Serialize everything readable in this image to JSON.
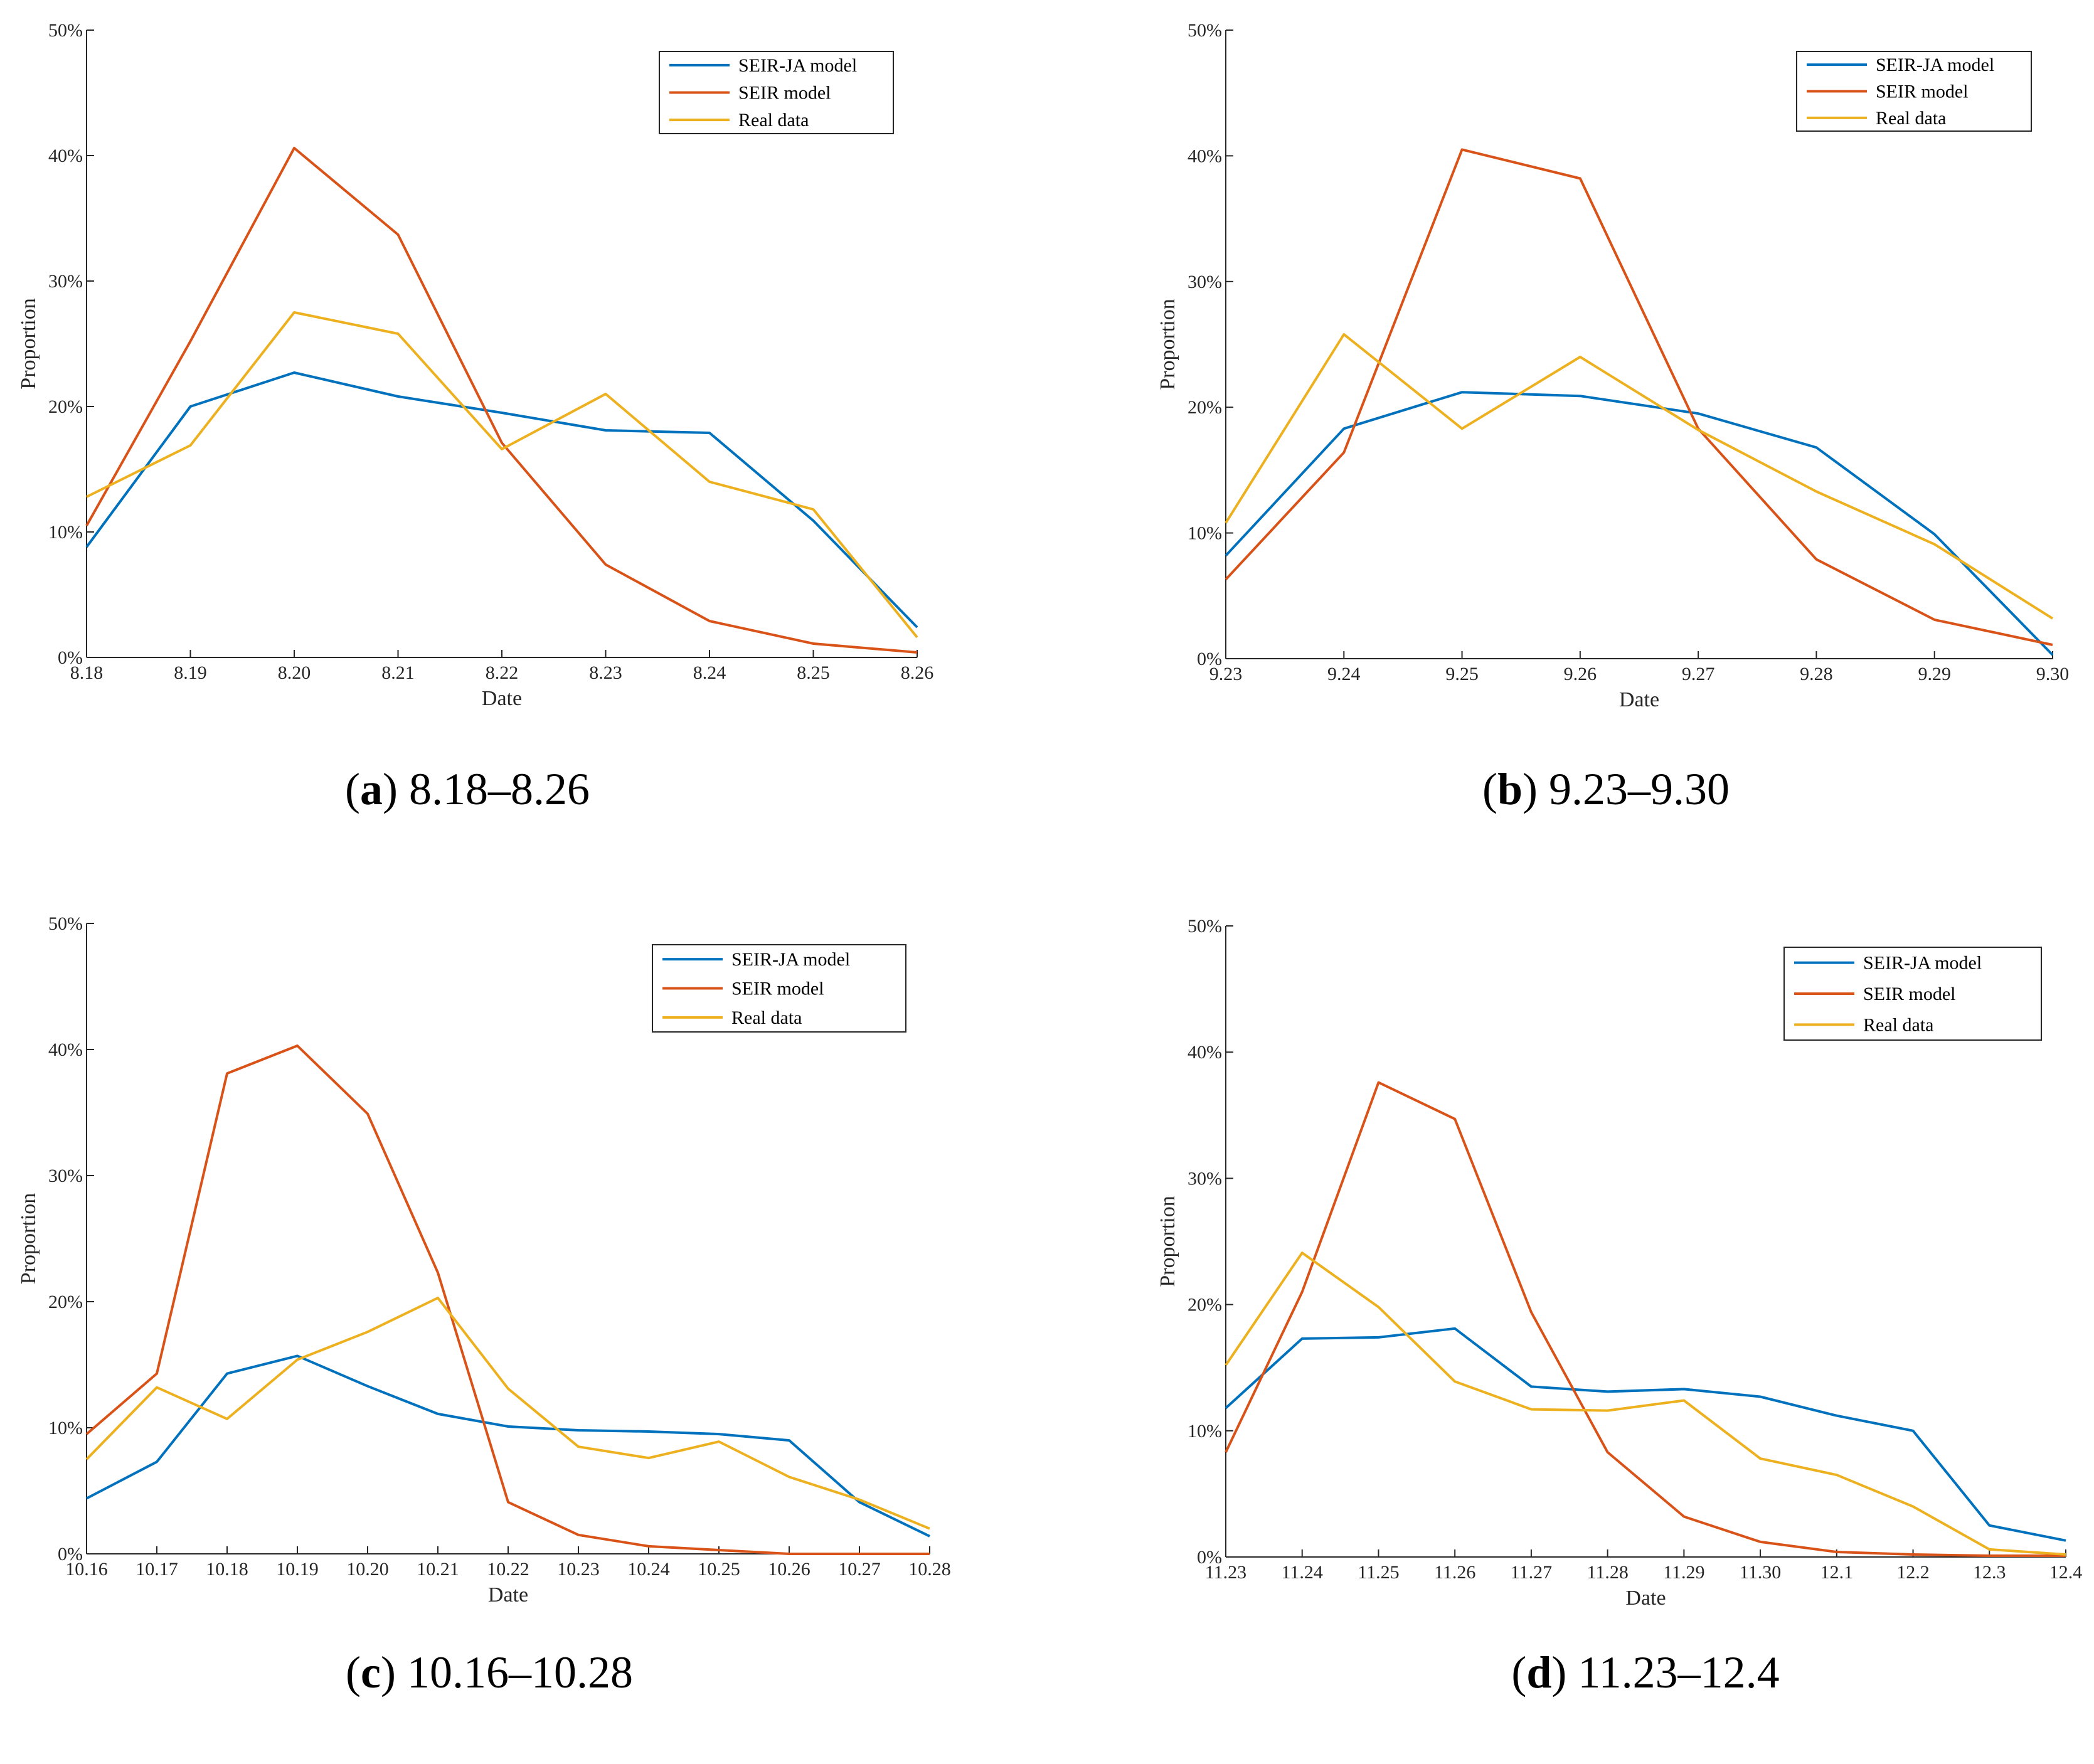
{
  "colors": {
    "SEIR-JA model": "#0072BD",
    "SEIR model": "#D95319",
    "Real data": "#EDB120"
  },
  "chart_data": [
    {
      "type": "line",
      "caption_letter": "a",
      "caption_open": "(",
      "caption_close": ")",
      "caption_text": " 8.18–8.26",
      "xlabel": "Date",
      "ylabel": "Proportion",
      "categories": [
        "8.18",
        "8.19",
        "8.20",
        "8.21",
        "8.22",
        "8.23",
        "8.24",
        "8.25",
        "8.26"
      ],
      "ylim": [
        0,
        50
      ],
      "yticks": [
        "0%",
        "10%",
        "20%",
        "30%",
        "40%",
        "50%"
      ],
      "legend_position": "top-right",
      "series": [
        {
          "name": "SEIR-JA model",
          "values": [
            8.8,
            20.0,
            22.7,
            20.8,
            19.5,
            18.1,
            17.9,
            10.9,
            2.4
          ]
        },
        {
          "name": "SEIR model",
          "values": [
            10.5,
            25.2,
            40.6,
            33.7,
            17.1,
            7.4,
            2.9,
            1.1,
            0.4
          ]
        },
        {
          "name": "Real data",
          "values": [
            12.8,
            16.9,
            27.5,
            25.8,
            16.6,
            21.0,
            14.0,
            11.8,
            1.6
          ]
        }
      ]
    },
    {
      "type": "line",
      "caption_letter": "b",
      "caption_open": "(",
      "caption_close": ")",
      "caption_text": " 9.23–9.30",
      "xlabel": "Date",
      "ylabel": "Proportion",
      "categories": [
        "9.23",
        "9.24",
        "9.25",
        "9.26",
        "9.27",
        "9.28",
        "9.29",
        "9.30"
      ],
      "ylim": [
        0,
        50
      ],
      "yticks": [
        "0%",
        "10%",
        "20%",
        "30%",
        "40%",
        "50%"
      ],
      "legend_position": "top-right",
      "series": [
        {
          "name": "SEIR-JA model",
          "values": [
            8.2,
            18.3,
            21.2,
            20.9,
            19.5,
            16.8,
            9.9,
            0.3
          ]
        },
        {
          "name": "SEIR model",
          "values": [
            6.3,
            16.4,
            40.5,
            38.2,
            18.3,
            7.9,
            3.1,
            1.1
          ]
        },
        {
          "name": "Real data",
          "values": [
            10.8,
            25.8,
            18.3,
            24.0,
            18.2,
            13.3,
            9.1,
            3.2
          ]
        }
      ]
    },
    {
      "type": "line",
      "caption_letter": "c",
      "caption_open": "(",
      "caption_close": ")",
      "caption_text": " 10.16–10.28",
      "xlabel": "Date",
      "ylabel": "Proportion",
      "categories": [
        "10.16",
        "10.17",
        "10.18",
        "10.19",
        "10.20",
        "10.21",
        "10.22",
        "10.23",
        "10.24",
        "10.25",
        "10.26",
        "10.27",
        "10.28"
      ],
      "ylim": [
        0,
        50
      ],
      "yticks": [
        "0%",
        "10%",
        "20%",
        "30%",
        "40%",
        "50%"
      ],
      "legend_position": "top-right",
      "series": [
        {
          "name": "SEIR-JA model",
          "values": [
            4.4,
            7.3,
            14.3,
            15.7,
            13.3,
            11.1,
            10.1,
            9.8,
            9.7,
            9.5,
            9.0,
            4.1,
            1.4
          ]
        },
        {
          "name": "SEIR model",
          "values": [
            9.5,
            14.3,
            38.1,
            40.3,
            34.9,
            22.3,
            4.1,
            1.5,
            0.6,
            0.3,
            0.0,
            0.0,
            0.0
          ]
        },
        {
          "name": "Real data",
          "values": [
            7.5,
            13.2,
            10.7,
            15.4,
            17.6,
            20.3,
            13.1,
            8.5,
            7.6,
            8.9,
            6.1,
            4.3,
            2.0
          ]
        }
      ]
    },
    {
      "type": "line",
      "caption_letter": "d",
      "caption_open": "(",
      "caption_close": ")",
      "caption_text": " 11.23–12.4",
      "xlabel": "Date",
      "ylabel": "Proportion",
      "categories": [
        "11.23",
        "11.24",
        "11.25",
        "11.26",
        "11.27",
        "11.28",
        "11.29",
        "11.30",
        "12.1",
        "12.2",
        "12.3",
        "12.4"
      ],
      "ylim": [
        0,
        50
      ],
      "yticks": [
        "0%",
        "10%",
        "20%",
        "30%",
        "40%",
        "50%"
      ],
      "legend_position": "top-right",
      "series": [
        {
          "name": "SEIR-JA model",
          "values": [
            11.8,
            17.3,
            17.4,
            18.1,
            13.5,
            13.1,
            13.3,
            12.7,
            11.2,
            10.0,
            2.5,
            1.3
          ]
        },
        {
          "name": "SEIR model",
          "values": [
            8.3,
            21.0,
            37.6,
            34.7,
            19.4,
            8.3,
            3.2,
            1.2,
            0.4,
            0.2,
            0.1,
            0.1
          ]
        },
        {
          "name": "Real data",
          "values": [
            15.2,
            24.1,
            19.8,
            13.9,
            11.7,
            11.6,
            12.4,
            7.8,
            6.5,
            4.0,
            0.6,
            0.2
          ]
        }
      ]
    }
  ]
}
